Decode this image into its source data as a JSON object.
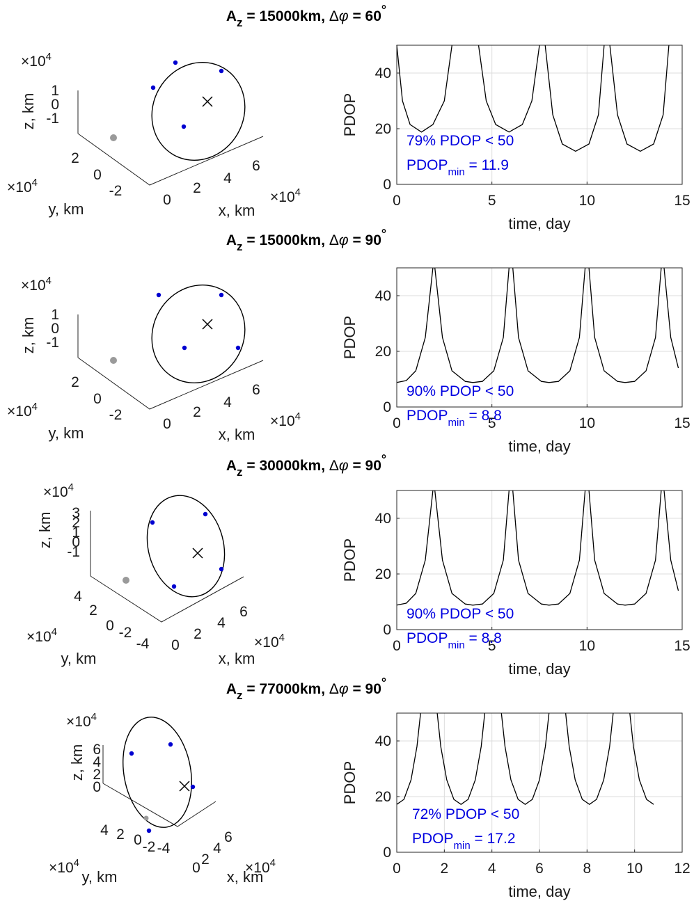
{
  "chart_data": [
    {
      "type": "line",
      "title": "A_z = 15000km, Δφ = 60°",
      "title_parts": {
        "a": "A",
        "z": "z",
        "mid": " = 15000km, ",
        "delta": "Δ",
        "phi": "φ",
        "eq": " = 60",
        "deg": "°"
      },
      "orbit3d": {
        "xlabel": "x, km",
        "ylabel": "y, km",
        "zlabel": "z, km",
        "x_ticks": [
          "0",
          "2",
          "4",
          "6"
        ],
        "y_ticks": [
          "2",
          "0",
          "-2"
        ],
        "z_ticks": [
          "1",
          "0",
          "-1"
        ],
        "exp_z": "×10",
        "exp_y": "×10",
        "exp_x": "×10",
        "exp_power": "4",
        "satellites": 4
      },
      "xlabel": "time, day",
      "ylabel": "PDOP",
      "xlim": [
        0,
        15
      ],
      "ylim": [
        0,
        50
      ],
      "x_ticks": [
        "0",
        "5",
        "10",
        "15"
      ],
      "y_ticks": [
        "0",
        "20",
        "40"
      ],
      "grid": true,
      "series": [
        {
          "values": [
            [
              0.0,
              50
            ],
            [
              0.3,
              30
            ],
            [
              0.7,
              21.5
            ],
            [
              1.3,
              18.8
            ],
            [
              1.9,
              21.5
            ],
            [
              2.5,
              30
            ],
            [
              2.9,
              50
            ],
            [
              4.3,
              50
            ],
            [
              4.7,
              30
            ],
            [
              5.2,
              21.5
            ],
            [
              5.9,
              18.8
            ],
            [
              6.6,
              21.5
            ],
            [
              7.1,
              30
            ],
            [
              7.5,
              50
            ],
            [
              7.8,
              50
            ],
            [
              8.2,
              25
            ],
            [
              8.7,
              14.5
            ],
            [
              9.4,
              11.9
            ],
            [
              10.1,
              14.5
            ],
            [
              10.6,
              25
            ],
            [
              10.9,
              50
            ],
            [
              11.2,
              50
            ],
            [
              11.6,
              25
            ],
            [
              12.1,
              14.5
            ],
            [
              12.8,
              11.9
            ],
            [
              13.5,
              14.5
            ],
            [
              14.0,
              25
            ],
            [
              14.3,
              50
            ]
          ]
        }
      ],
      "annotation": {
        "pct": "79% PDOP < 50",
        "min_label": "PDOP",
        "min_sub": "min",
        "min_value": " = 11.9"
      }
    },
    {
      "type": "line",
      "title": "A_z = 15000km, Δφ = 90°",
      "title_parts": {
        "a": "A",
        "z": "z",
        "mid": " = 15000km, ",
        "delta": "Δ",
        "phi": "φ",
        "eq": " = 90",
        "deg": "°"
      },
      "orbit3d": {
        "xlabel": "x, km",
        "ylabel": "y, km",
        "zlabel": "z, km",
        "x_ticks": [
          "0",
          "2",
          "4",
          "6"
        ],
        "y_ticks": [
          "2",
          "0",
          "-2"
        ],
        "z_ticks": [
          "1",
          "0",
          "-1"
        ],
        "exp_z": "×10",
        "exp_y": "×10",
        "exp_x": "×10",
        "exp_power": "4",
        "satellites": 4
      },
      "xlabel": "time, day",
      "ylabel": "PDOP",
      "xlim": [
        0,
        15
      ],
      "ylim": [
        0,
        50
      ],
      "x_ticks": [
        "0",
        "5",
        "10",
        "15"
      ],
      "y_ticks": [
        "0",
        "20",
        "40"
      ],
      "grid": true,
      "series": [
        {
          "values": [
            [
              0.0,
              8.8
            ],
            [
              0.5,
              9.5
            ],
            [
              1.0,
              13
            ],
            [
              1.5,
              25
            ],
            [
              1.9,
              50
            ],
            [
              2.0,
              50
            ],
            [
              2.4,
              25
            ],
            [
              2.9,
              13
            ],
            [
              3.6,
              9.2
            ],
            [
              4.0,
              8.8
            ],
            [
              4.5,
              9.2
            ],
            [
              5.1,
              13
            ],
            [
              5.6,
              25
            ],
            [
              5.9,
              50
            ],
            [
              6.1,
              50
            ],
            [
              6.4,
              25
            ],
            [
              6.9,
              13
            ],
            [
              7.6,
              9.2
            ],
            [
              8.0,
              8.8
            ],
            [
              8.5,
              9.2
            ],
            [
              9.1,
              13
            ],
            [
              9.6,
              25
            ],
            [
              9.9,
              50
            ],
            [
              10.1,
              50
            ],
            [
              10.4,
              25
            ],
            [
              10.9,
              13
            ],
            [
              11.6,
              9.2
            ],
            [
              12.0,
              8.8
            ],
            [
              12.5,
              9.2
            ],
            [
              13.1,
              13
            ],
            [
              13.6,
              25
            ],
            [
              13.9,
              50
            ],
            [
              14.05,
              50
            ],
            [
              14.4,
              25
            ],
            [
              14.8,
              14
            ]
          ]
        }
      ],
      "annotation": {
        "pct": "90% PDOP < 50",
        "min_label": "PDOP",
        "min_sub": "min",
        "min_value": " = 8.8"
      }
    },
    {
      "type": "line",
      "title": "A_z = 30000km, Δφ = 90°",
      "title_parts": {
        "a": "A",
        "z": "z",
        "mid": " = 30000km, ",
        "delta": "Δ",
        "phi": "φ",
        "eq": " = 90",
        "deg": "°"
      },
      "orbit3d": {
        "xlabel": "x, km",
        "ylabel": "y, km",
        "zlabel": "z, km",
        "x_ticks": [
          "0",
          "2",
          "4",
          "6"
        ],
        "y_ticks": [
          "4",
          "2",
          "0",
          "-2",
          "-4"
        ],
        "z_ticks": [
          "3",
          "2",
          "1",
          "0",
          "-1"
        ],
        "exp_z": "×10",
        "exp_y": "×10",
        "exp_x": "×10",
        "exp_power": "4",
        "satellites": 4
      },
      "xlabel": "time, day",
      "ylabel": "PDOP",
      "xlim": [
        0,
        15
      ],
      "ylim": [
        0,
        50
      ],
      "x_ticks": [
        "0",
        "5",
        "10",
        "15"
      ],
      "y_ticks": [
        "0",
        "20",
        "40"
      ],
      "grid": true,
      "series": [
        {
          "values": [
            [
              0.0,
              8.8
            ],
            [
              0.5,
              9.5
            ],
            [
              1.0,
              13
            ],
            [
              1.5,
              25
            ],
            [
              1.9,
              50
            ],
            [
              2.0,
              50
            ],
            [
              2.4,
              25
            ],
            [
              2.9,
              13
            ],
            [
              3.6,
              9.2
            ],
            [
              4.0,
              8.8
            ],
            [
              4.5,
              9.2
            ],
            [
              5.1,
              13
            ],
            [
              5.6,
              25
            ],
            [
              5.9,
              50
            ],
            [
              6.1,
              50
            ],
            [
              6.4,
              25
            ],
            [
              6.9,
              13
            ],
            [
              7.6,
              9.2
            ],
            [
              8.0,
              8.8
            ],
            [
              8.5,
              9.2
            ],
            [
              9.1,
              13
            ],
            [
              9.6,
              25
            ],
            [
              9.9,
              50
            ],
            [
              10.1,
              50
            ],
            [
              10.4,
              25
            ],
            [
              10.9,
              13
            ],
            [
              11.6,
              9.2
            ],
            [
              12.0,
              8.8
            ],
            [
              12.5,
              9.2
            ],
            [
              13.1,
              13
            ],
            [
              13.6,
              25
            ],
            [
              13.9,
              50
            ],
            [
              14.05,
              50
            ],
            [
              14.4,
              25
            ],
            [
              14.8,
              14
            ]
          ]
        }
      ],
      "annotation": {
        "pct": "90% PDOP < 50",
        "min_label": "PDOP",
        "min_sub": "min",
        "min_value": " = 8.8"
      }
    },
    {
      "type": "line",
      "title": "A_z = 77000km, Δφ = 90°",
      "title_parts": {
        "a": "A",
        "z": "z",
        "mid": " = 77000km, ",
        "delta": "Δ",
        "phi": "φ",
        "eq": " = 90",
        "deg": "°"
      },
      "orbit3d": {
        "xlabel": "x, km",
        "ylabel": "y, km",
        "zlabel": "z, km",
        "x_ticks": [
          "0",
          "2",
          "4",
          "6"
        ],
        "y_ticks": [
          "4",
          "2",
          "0",
          "-2",
          "-4"
        ],
        "z_ticks": [
          "6",
          "4",
          "2",
          "0"
        ],
        "exp_z": "×10",
        "exp_y": "×10",
        "exp_x": "×10",
        "exp_power": "4",
        "satellites": 4
      },
      "xlabel": "time, day",
      "ylabel": "PDOP",
      "xlim": [
        0,
        12
      ],
      "ylim": [
        0,
        50
      ],
      "x_ticks": [
        "0",
        "2",
        "4",
        "6",
        "8",
        "10",
        "12"
      ],
      "y_ticks": [
        "0",
        "20",
        "40"
      ],
      "grid": true,
      "series": [
        {
          "values": [
            [
              0.0,
              17.2
            ],
            [
              0.3,
              19
            ],
            [
              0.6,
              26
            ],
            [
              0.85,
              38
            ],
            [
              1.0,
              50
            ],
            [
              1.7,
              50
            ],
            [
              1.85,
              38
            ],
            [
              2.1,
              26
            ],
            [
              2.4,
              19
            ],
            [
              2.7,
              17.2
            ],
            [
              3.0,
              19
            ],
            [
              3.3,
              26
            ],
            [
              3.55,
              38
            ],
            [
              3.7,
              50
            ],
            [
              4.4,
              50
            ],
            [
              4.55,
              38
            ],
            [
              4.8,
              26
            ],
            [
              5.1,
              19
            ],
            [
              5.4,
              17.2
            ],
            [
              5.7,
              19
            ],
            [
              6.0,
              26
            ],
            [
              6.25,
              38
            ],
            [
              6.4,
              50
            ],
            [
              7.1,
              50
            ],
            [
              7.25,
              38
            ],
            [
              7.5,
              26
            ],
            [
              7.8,
              19
            ],
            [
              8.1,
              17.2
            ],
            [
              8.4,
              19
            ],
            [
              8.7,
              26
            ],
            [
              8.95,
              38
            ],
            [
              9.1,
              50
            ],
            [
              9.8,
              50
            ],
            [
              9.95,
              38
            ],
            [
              10.2,
              26
            ],
            [
              10.5,
              19
            ],
            [
              10.8,
              17.2
            ]
          ]
        }
      ],
      "annotation": {
        "pct": "72% PDOP < 50",
        "min_label": "PDOP",
        "min_sub": "min",
        "min_value": " = 17.2"
      }
    }
  ]
}
